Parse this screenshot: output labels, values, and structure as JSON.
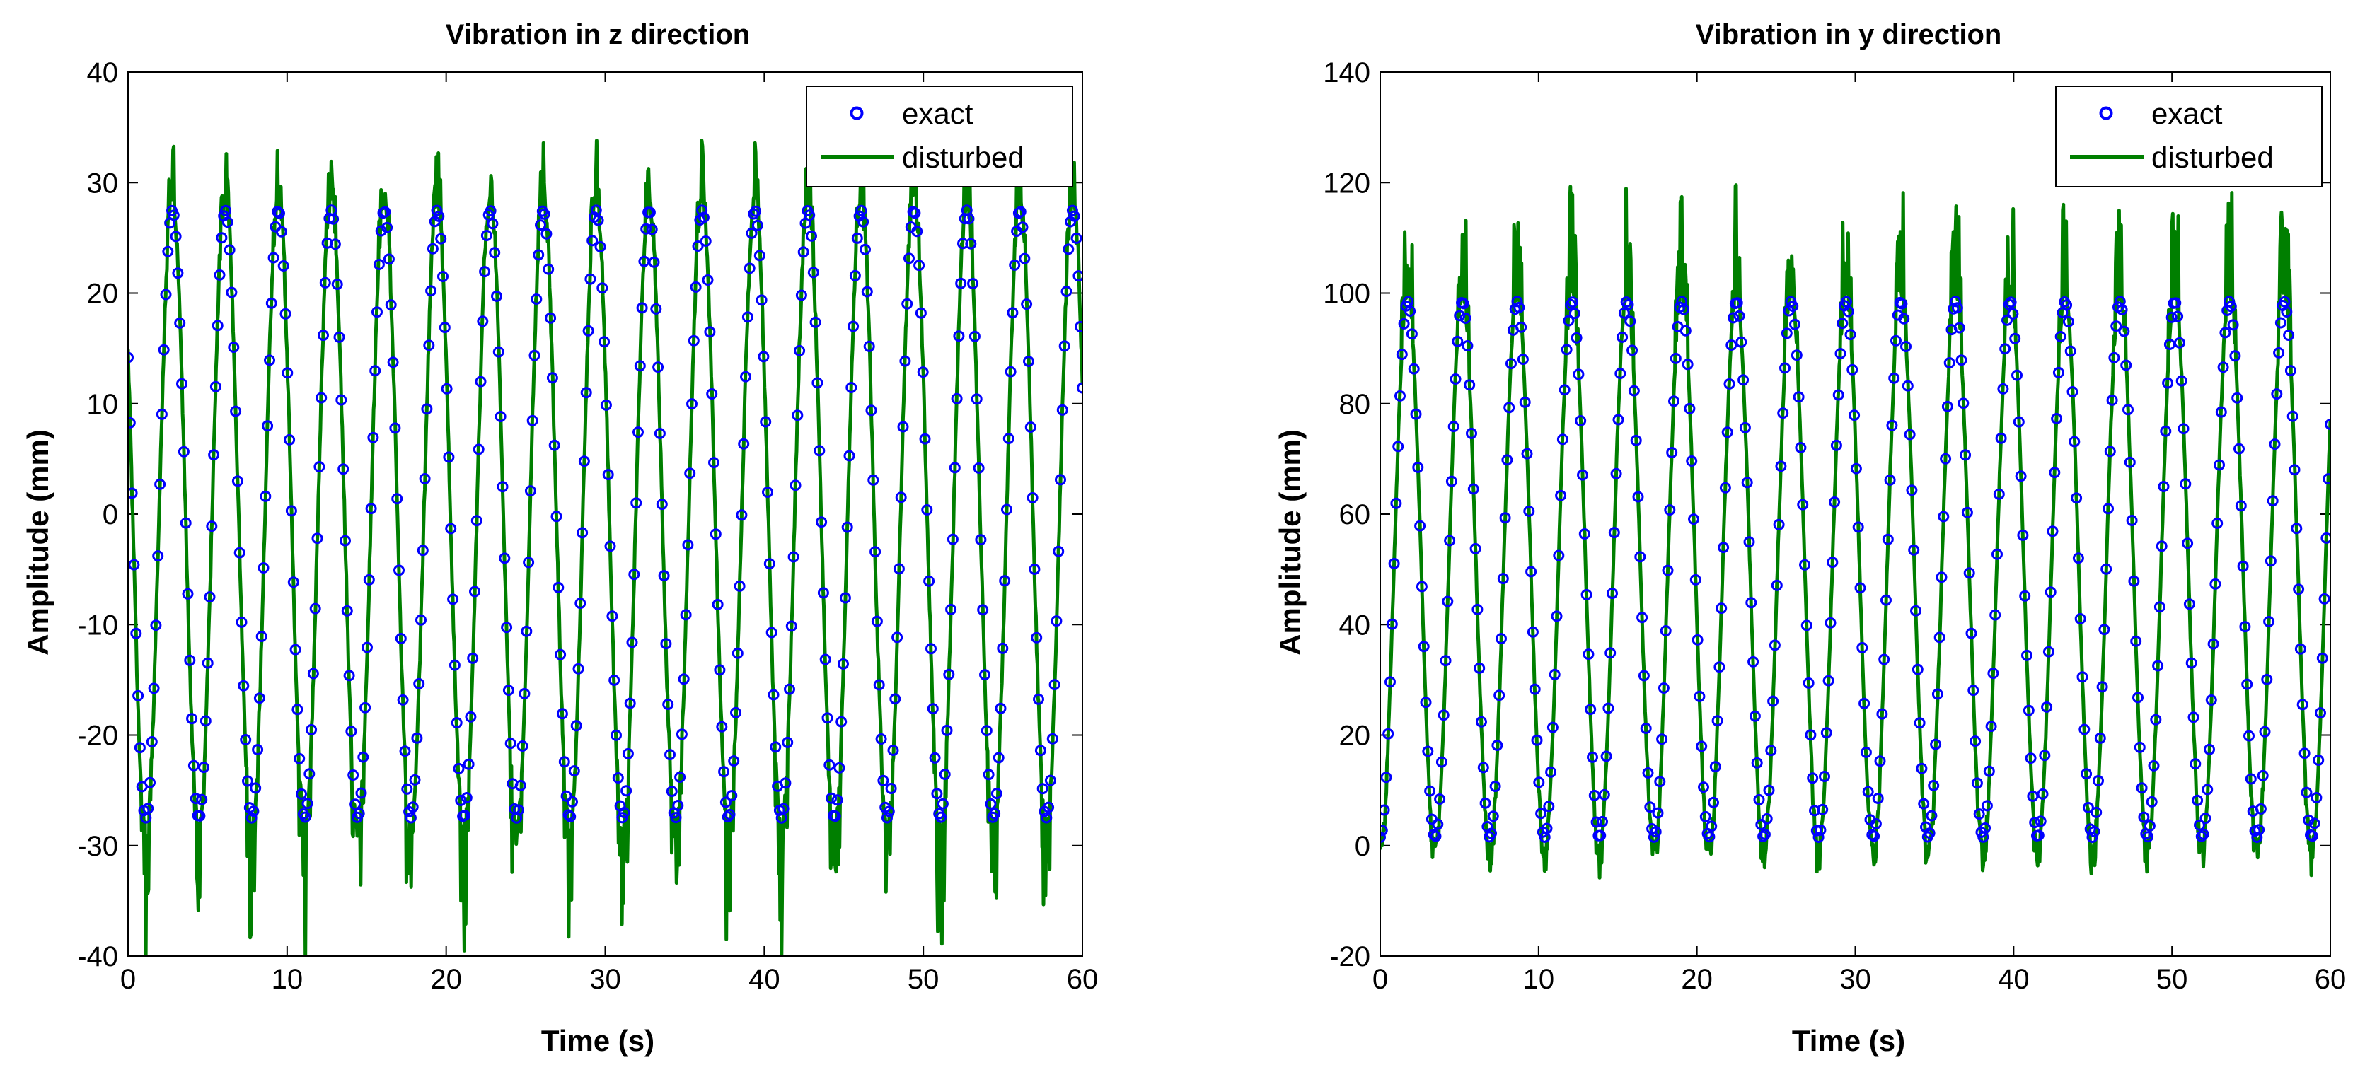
{
  "figure": {
    "background": "#ffffff"
  },
  "chart_data": [
    {
      "type": "line",
      "title": "Vibration in z direction",
      "xlabel": "Time (s)",
      "ylabel": "Amplitude (mm)",
      "xlim": [
        0,
        60
      ],
      "ylim": [
        -40,
        40
      ],
      "xticks": [
        0,
        10,
        20,
        30,
        40,
        50,
        60
      ],
      "yticks": [
        -40,
        -30,
        -20,
        -10,
        0,
        10,
        20,
        30,
        40
      ],
      "legend_position": "top-right",
      "series": [
        {
          "name": "exact",
          "style": "markers-circle",
          "color": "#0000ff",
          "model": {
            "kind": "sine",
            "offset": 0,
            "amplitude": 27.5,
            "period": 3.33,
            "phase": 2.6,
            "t_start": 0,
            "t_end": 60,
            "samples": 480
          }
        },
        {
          "name": "disturbed",
          "style": "line",
          "color": "#007f00",
          "model": {
            "kind": "sine",
            "offset": 0,
            "amplitude": 28.5,
            "period": 3.33,
            "phase": 2.6,
            "t_start": 0,
            "t_end": 60,
            "samples": 1400,
            "noise_max_above": 5.5,
            "noise_max_below": 12
          }
        }
      ]
    },
    {
      "type": "line",
      "title": "Vibration in y direction",
      "xlabel": "Time (s)",
      "ylabel": "Amplitude (mm)",
      "xlim": [
        0,
        60
      ],
      "ylim": [
        -20,
        140
      ],
      "xticks": [
        0,
        10,
        20,
        30,
        40,
        50,
        60
      ],
      "yticks": [
        -20,
        0,
        20,
        40,
        60,
        80,
        100,
        120,
        140
      ],
      "legend_position": "top-right",
      "series": [
        {
          "name": "exact",
          "style": "markers-circle",
          "color": "#0000ff",
          "model": {
            "kind": "sine",
            "offset": 50,
            "amplitude": 48.5,
            "period": 3.46,
            "phase": -1.5708,
            "t_start": 0,
            "t_end": 60,
            "samples": 480
          }
        },
        {
          "name": "disturbed",
          "style": "line",
          "color": "#007f00",
          "model": {
            "kind": "sine",
            "offset": 50,
            "amplitude": 50,
            "period": 3.46,
            "phase": -1.5708,
            "t_start": 0,
            "t_end": 60,
            "samples": 1400,
            "noise_max_above": 22,
            "noise_max_below": 6
          }
        }
      ]
    }
  ]
}
